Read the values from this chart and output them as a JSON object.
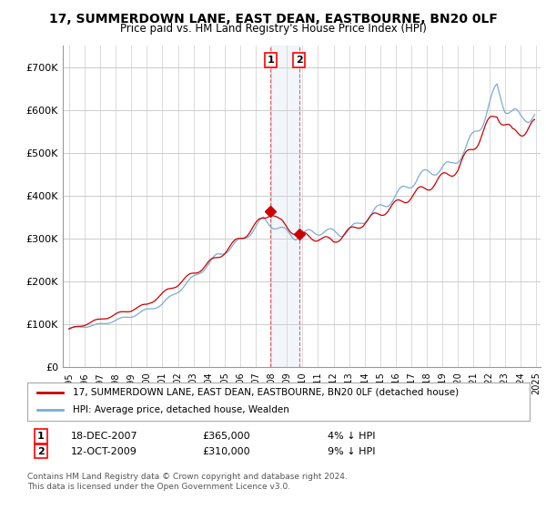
{
  "title": "17, SUMMERDOWN LANE, EAST DEAN, EASTBOURNE, BN20 0LF",
  "subtitle": "Price paid vs. HM Land Registry's House Price Index (HPI)",
  "legend_label_red": "17, SUMMERDOWN LANE, EAST DEAN, EASTBOURNE, BN20 0LF (detached house)",
  "legend_label_blue": "HPI: Average price, detached house, Wealden",
  "transaction1_date": "18-DEC-2007",
  "transaction1_price": "£365,000",
  "transaction1_hpi": "4% ↓ HPI",
  "transaction1_year": 2007.958,
  "transaction1_value": 365000,
  "transaction2_date": "12-OCT-2009",
  "transaction2_price": "£310,000",
  "transaction2_hpi": "9% ↓ HPI",
  "transaction2_year": 2009.792,
  "transaction2_value": 310000,
  "footer": "Contains HM Land Registry data © Crown copyright and database right 2024.\nThis data is licensed under the Open Government Licence v3.0.",
  "ylim": [
    0,
    750000
  ],
  "yticks": [
    0,
    100000,
    200000,
    300000,
    400000,
    500000,
    600000,
    700000
  ],
  "ytick_labels": [
    "£0",
    "£100K",
    "£200K",
    "£300K",
    "£400K",
    "£500K",
    "£600K",
    "£700K"
  ],
  "hpi_color": "#7aadd4",
  "price_color": "#cc0000",
  "background_color": "#ffffff",
  "grid_color": "#cccccc",
  "vline_color": "#dd6666",
  "vshade_color": "#dce8f5"
}
